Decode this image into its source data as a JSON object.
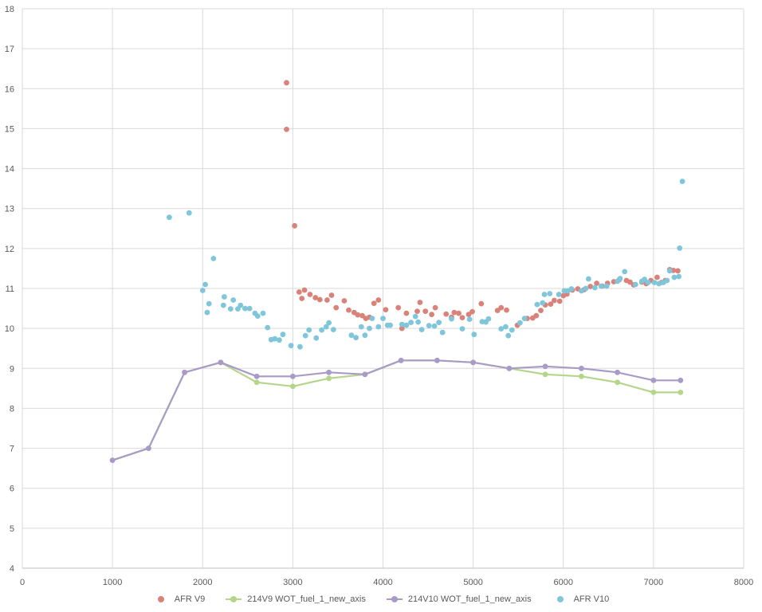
{
  "chart_data": {
    "type": "scatter",
    "title": "",
    "xlabel": "",
    "ylabel": "",
    "xlim": [
      0,
      8000
    ],
    "ylim": [
      4,
      18
    ],
    "x_ticks": [
      "0",
      "1000",
      "2000",
      "3000",
      "4000",
      "5000",
      "6000",
      "7000",
      "8000"
    ],
    "y_ticks": [
      "4",
      "5",
      "6",
      "7",
      "8",
      "9",
      "10",
      "11",
      "12",
      "13",
      "14",
      "15",
      "16",
      "17",
      "18"
    ],
    "grid": true,
    "legend_position": "bottom",
    "series": [
      {
        "name": "AFR V9",
        "style": "markers",
        "color": "#D9827A",
        "points": [
          [
            2930,
            16.15
          ],
          [
            2930,
            14.98
          ],
          [
            3020,
            12.57
          ],
          [
            3070,
            10.91
          ],
          [
            3100,
            10.75
          ],
          [
            3130,
            10.96
          ],
          [
            3190,
            10.85
          ],
          [
            3250,
            10.77
          ],
          [
            3300,
            10.72
          ],
          [
            3380,
            10.71
          ],
          [
            3430,
            10.83
          ],
          [
            3480,
            10.52
          ],
          [
            3570,
            10.69
          ],
          [
            3620,
            10.46
          ],
          [
            3680,
            10.4
          ],
          [
            3720,
            10.34
          ],
          [
            3770,
            10.32
          ],
          [
            3810,
            10.25
          ],
          [
            3850,
            10.28
          ],
          [
            3900,
            10.63
          ],
          [
            3950,
            10.71
          ],
          [
            4030,
            10.47
          ],
          [
            4170,
            10.52
          ],
          [
            4210,
            10.0
          ],
          [
            4260,
            10.38
          ],
          [
            4380,
            10.43
          ],
          [
            4410,
            10.65
          ],
          [
            4470,
            10.43
          ],
          [
            4540,
            10.35
          ],
          [
            4580,
            10.52
          ],
          [
            4700,
            10.36
          ],
          [
            4760,
            10.28
          ],
          [
            4790,
            10.4
          ],
          [
            4840,
            10.38
          ],
          [
            4880,
            10.27
          ],
          [
            4950,
            10.35
          ],
          [
            4990,
            10.42
          ],
          [
            5090,
            10.62
          ],
          [
            5270,
            10.45
          ],
          [
            5310,
            10.52
          ],
          [
            5370,
            10.46
          ],
          [
            5490,
            10.08
          ],
          [
            5600,
            10.25
          ],
          [
            5660,
            10.26
          ],
          [
            5700,
            10.32
          ],
          [
            5750,
            10.45
          ],
          [
            5800,
            10.59
          ],
          [
            5860,
            10.61
          ],
          [
            5900,
            10.7
          ],
          [
            5960,
            10.68
          ],
          [
            6000,
            10.82
          ],
          [
            6040,
            10.86
          ],
          [
            6100,
            10.96
          ],
          [
            6160,
            10.99
          ],
          [
            6230,
            10.97
          ],
          [
            6300,
            11.05
          ],
          [
            6370,
            11.13
          ],
          [
            6430,
            11.06
          ],
          [
            6490,
            11.13
          ],
          [
            6560,
            11.17
          ],
          [
            6620,
            11.22
          ],
          [
            6700,
            11.2
          ],
          [
            6740,
            11.16
          ],
          [
            6780,
            11.09
          ],
          [
            6870,
            11.16
          ],
          [
            6920,
            11.12
          ],
          [
            6970,
            11.2
          ],
          [
            7040,
            11.28
          ],
          [
            7090,
            11.15
          ],
          [
            7130,
            11.2
          ],
          [
            7180,
            11.47
          ],
          [
            7220,
            11.45
          ],
          [
            7270,
            11.44
          ]
        ]
      },
      {
        "name": "214V9 WOT_fuel_1_new_axis",
        "style": "line-markers",
        "color": "#B5D58B",
        "points": [
          [
            1000,
            6.7
          ],
          [
            1400,
            7.0
          ],
          [
            1800,
            8.9
          ],
          [
            2200,
            9.15
          ],
          [
            2600,
            8.65
          ],
          [
            3000,
            8.55
          ],
          [
            3400,
            8.75
          ],
          [
            3800,
            8.85
          ],
          [
            4200,
            9.2
          ],
          [
            4600,
            9.2
          ],
          [
            5000,
            9.15
          ],
          [
            5400,
            9.0
          ],
          [
            5800,
            8.85
          ],
          [
            6200,
            8.8
          ],
          [
            6600,
            8.65
          ],
          [
            7000,
            8.4
          ],
          [
            7300,
            8.4
          ]
        ]
      },
      {
        "name": "214V10 WOT_fuel_1_new_axis",
        "style": "line-markers",
        "color": "#A99BC8",
        "points": [
          [
            1000,
            6.7
          ],
          [
            1400,
            7.0
          ],
          [
            1800,
            8.9
          ],
          [
            2200,
            9.15
          ],
          [
            2600,
            8.8
          ],
          [
            3000,
            8.8
          ],
          [
            3400,
            8.9
          ],
          [
            3800,
            8.85
          ],
          [
            4200,
            9.2
          ],
          [
            4600,
            9.2
          ],
          [
            5000,
            9.15
          ],
          [
            5400,
            9.0
          ],
          [
            5800,
            9.05
          ],
          [
            6200,
            9.0
          ],
          [
            6600,
            8.9
          ],
          [
            7000,
            8.7
          ],
          [
            7300,
            8.7
          ]
        ]
      },
      {
        "name": "AFR V10",
        "style": "markers",
        "color": "#7FC6DA",
        "points": [
          [
            1630,
            12.78
          ],
          [
            1850,
            12.89
          ],
          [
            2000,
            10.95
          ],
          [
            2030,
            11.1
          ],
          [
            2050,
            10.4
          ],
          [
            2070,
            10.62
          ],
          [
            2120,
            11.75
          ],
          [
            2230,
            10.58
          ],
          [
            2240,
            10.79
          ],
          [
            2310,
            10.49
          ],
          [
            2340,
            10.71
          ],
          [
            2390,
            10.49
          ],
          [
            2420,
            10.58
          ],
          [
            2470,
            10.5
          ],
          [
            2520,
            10.5
          ],
          [
            2580,
            10.38
          ],
          [
            2610,
            10.31
          ],
          [
            2670,
            10.38
          ],
          [
            2720,
            10.02
          ],
          [
            2760,
            9.72
          ],
          [
            2800,
            9.74
          ],
          [
            2850,
            9.71
          ],
          [
            2890,
            9.85
          ],
          [
            2980,
            9.57
          ],
          [
            3080,
            9.54
          ],
          [
            3140,
            9.82
          ],
          [
            3180,
            9.96
          ],
          [
            3260,
            9.76
          ],
          [
            3320,
            9.96
          ],
          [
            3370,
            10.04
          ],
          [
            3400,
            10.14
          ],
          [
            3450,
            9.97
          ],
          [
            3650,
            9.83
          ],
          [
            3700,
            9.77
          ],
          [
            3760,
            10.04
          ],
          [
            3800,
            9.83
          ],
          [
            3850,
            10.0
          ],
          [
            3880,
            10.25
          ],
          [
            3950,
            10.04
          ],
          [
            4000,
            10.25
          ],
          [
            4050,
            10.08
          ],
          [
            4080,
            10.08
          ],
          [
            4210,
            10.1
          ],
          [
            4260,
            10.08
          ],
          [
            4310,
            10.15
          ],
          [
            4360,
            10.3
          ],
          [
            4390,
            10.16
          ],
          [
            4430,
            9.97
          ],
          [
            4510,
            10.07
          ],
          [
            4570,
            10.06
          ],
          [
            4620,
            10.15
          ],
          [
            4660,
            9.9
          ],
          [
            4760,
            10.24
          ],
          [
            4880,
            9.99
          ],
          [
            4960,
            10.23
          ],
          [
            5010,
            9.85
          ],
          [
            5100,
            10.17
          ],
          [
            5140,
            10.16
          ],
          [
            5170,
            10.24
          ],
          [
            5310,
            9.99
          ],
          [
            5360,
            10.04
          ],
          [
            5390,
            9.82
          ],
          [
            5430,
            9.96
          ],
          [
            5520,
            10.14
          ],
          [
            5570,
            10.25
          ],
          [
            5710,
            10.6
          ],
          [
            5770,
            10.64
          ],
          [
            5790,
            10.85
          ],
          [
            5850,
            10.87
          ],
          [
            5950,
            10.85
          ],
          [
            6010,
            10.94
          ],
          [
            6050,
            10.94
          ],
          [
            6090,
            10.99
          ],
          [
            6200,
            10.94
          ],
          [
            6250,
            11.0
          ],
          [
            6280,
            11.24
          ],
          [
            6350,
            11.02
          ],
          [
            6420,
            11.06
          ],
          [
            6480,
            11.06
          ],
          [
            6600,
            11.18
          ],
          [
            6630,
            11.25
          ],
          [
            6680,
            11.42
          ],
          [
            6800,
            11.1
          ],
          [
            6870,
            11.18
          ],
          [
            6900,
            11.23
          ],
          [
            6940,
            11.15
          ],
          [
            7010,
            11.15
          ],
          [
            7060,
            11.12
          ],
          [
            7110,
            11.15
          ],
          [
            7150,
            11.2
          ],
          [
            7180,
            11.44
          ],
          [
            7230,
            11.28
          ],
          [
            7280,
            11.3
          ],
          [
            7290,
            12.01
          ],
          [
            7320,
            13.68
          ]
        ]
      }
    ]
  }
}
